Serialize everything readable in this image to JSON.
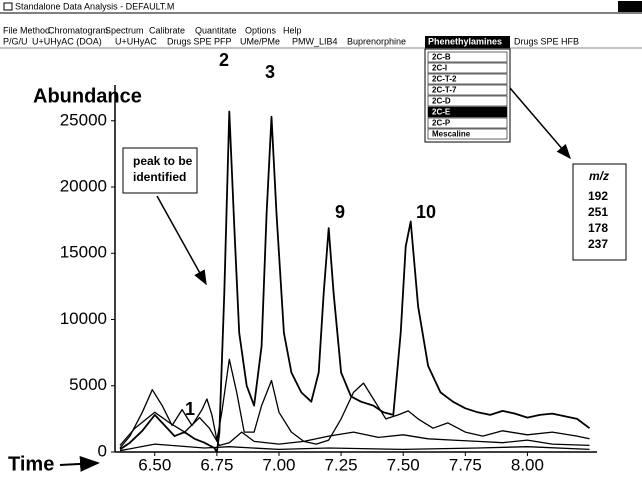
{
  "window": {
    "title": "Standalone Data Analysis - DEFAULT.M"
  },
  "menu_bar": [
    "File",
    "Method",
    "Chromatogram",
    "Spectrum",
    "Calibrate",
    "Quantitate",
    "Options",
    "Help"
  ],
  "toolbar": {
    "items": [
      "P/G/U",
      "U+UHyAC (DOA)",
      "U+UHyAC",
      "Drugs SPE PFP",
      "UMe/PMe",
      "PMW_LIB4",
      "Buprenorphine",
      "Phenethylamines",
      "Drugs SPE HFB"
    ],
    "selected": 7
  },
  "dropdown": {
    "items": [
      "2C-B",
      "2C-I",
      "2C-T-2",
      "2C-T-7",
      "2C-D",
      "2C-E",
      "2C-P",
      "Mescaline"
    ],
    "selected": 5
  },
  "mz_box": {
    "header": "m/z",
    "values": [
      192,
      251,
      178,
      237
    ]
  },
  "chart_data": {
    "type": "line",
    "y_label": "Abundance",
    "x_label": "Time",
    "annotation": [
      "peak to be",
      "identified"
    ],
    "peak_labels": [
      "1",
      "2",
      "3",
      "9",
      "10"
    ],
    "xlim": [
      6.34,
      8.28
    ],
    "ylim": [
      0,
      27700
    ],
    "xticks": [
      {
        "value": 6.5,
        "label": "6.50"
      },
      {
        "value": 6.75,
        "label": "6.75"
      },
      {
        "value": 7.0,
        "label": "7.00"
      },
      {
        "value": 7.25,
        "label": "7.25"
      },
      {
        "value": 7.5,
        "label": "7.50"
      },
      {
        "value": 7.75,
        "label": "7.75"
      },
      {
        "value": 8.0,
        "label": "8.00"
      }
    ],
    "yticks": [
      0,
      5000,
      10000,
      15000,
      20000,
      25000
    ],
    "grid": false,
    "series": [
      {
        "color": "#000000",
        "x": [
          6.36,
          6.4,
          6.45,
          6.5,
          6.54,
          6.58,
          6.62,
          6.66,
          6.7,
          6.74,
          6.75,
          6.76,
          6.78,
          6.8,
          6.82,
          6.84,
          6.87,
          6.9,
          6.93,
          6.95,
          6.97,
          6.99,
          7.02,
          7.05,
          7.09,
          7.13,
          7.16,
          7.18,
          7.2,
          7.22,
          7.25,
          7.29,
          7.33,
          7.38,
          7.42,
          7.46,
          7.49,
          7.51,
          7.53,
          7.56,
          7.6,
          7.65,
          7.7,
          7.75,
          7.8,
          7.85,
          7.9,
          7.95,
          8.0,
          8.05,
          8.1,
          8.2,
          8.25
        ],
        "values": [
          200,
          700,
          1600,
          2800,
          2000,
          1200,
          1500,
          1000,
          700,
          300,
          0,
          1500,
          12000,
          25700,
          17000,
          9000,
          5000,
          3500,
          8000,
          18000,
          25300,
          18000,
          9000,
          6000,
          4500,
          3800,
          6000,
          12000,
          16900,
          12000,
          6000,
          4200,
          3800,
          3500,
          3000,
          2800,
          9000,
          15500,
          17400,
          11000,
          6500,
          4500,
          3800,
          3300,
          3000,
          2800,
          3100,
          2900,
          2600,
          2800,
          2900,
          2500,
          1800
        ]
      },
      {
        "color": "#000000",
        "x": [
          6.36,
          6.4,
          6.45,
          6.49,
          6.53,
          6.57,
          6.61,
          6.65,
          6.69,
          6.71,
          6.73,
          6.75,
          6.77,
          6.8,
          6.83,
          6.86,
          6.9,
          6.93,
          6.97,
          7.0,
          7.05,
          7.1,
          7.15,
          7.2,
          7.25,
          7.3,
          7.34,
          7.38,
          7.43,
          7.48,
          7.52,
          7.56,
          7.62,
          7.68,
          7.75,
          7.82,
          7.9,
          8.0,
          8.1,
          8.2,
          8.25
        ],
        "values": [
          300,
          1200,
          3000,
          4700,
          3500,
          2000,
          3200,
          2000,
          3200,
          4000,
          2800,
          900,
          3000,
          7000,
          4500,
          1500,
          1500,
          3500,
          5400,
          3000,
          1500,
          800,
          600,
          900,
          2500,
          4500,
          5200,
          4000,
          2500,
          2800,
          3100,
          2500,
          1800,
          2200,
          1500,
          1200,
          1600,
          1300,
          1500,
          1200,
          1000
        ]
      },
      {
        "color": "#000000",
        "x": [
          6.36,
          6.42,
          6.5,
          6.56,
          6.62,
          6.68,
          6.72,
          6.76,
          6.8,
          6.85,
          6.9,
          7.0,
          7.1,
          7.2,
          7.3,
          7.4,
          7.5,
          7.6,
          7.7,
          7.8,
          7.9,
          8.0,
          8.1,
          8.25
        ],
        "values": [
          500,
          1800,
          3000,
          2200,
          1500,
          2600,
          1800,
          500,
          700,
          1500,
          800,
          600,
          800,
          1200,
          1500,
          1100,
          1300,
          1000,
          900,
          800,
          700,
          900,
          600,
          500
        ]
      },
      {
        "color": "#000000",
        "x": [
          6.36,
          6.5,
          6.7,
          6.8,
          7.0,
          7.2,
          7.5,
          7.8,
          8.0,
          8.25
        ],
        "values": [
          100,
          600,
          300,
          400,
          200,
          300,
          200,
          300,
          400,
          200
        ]
      }
    ]
  }
}
